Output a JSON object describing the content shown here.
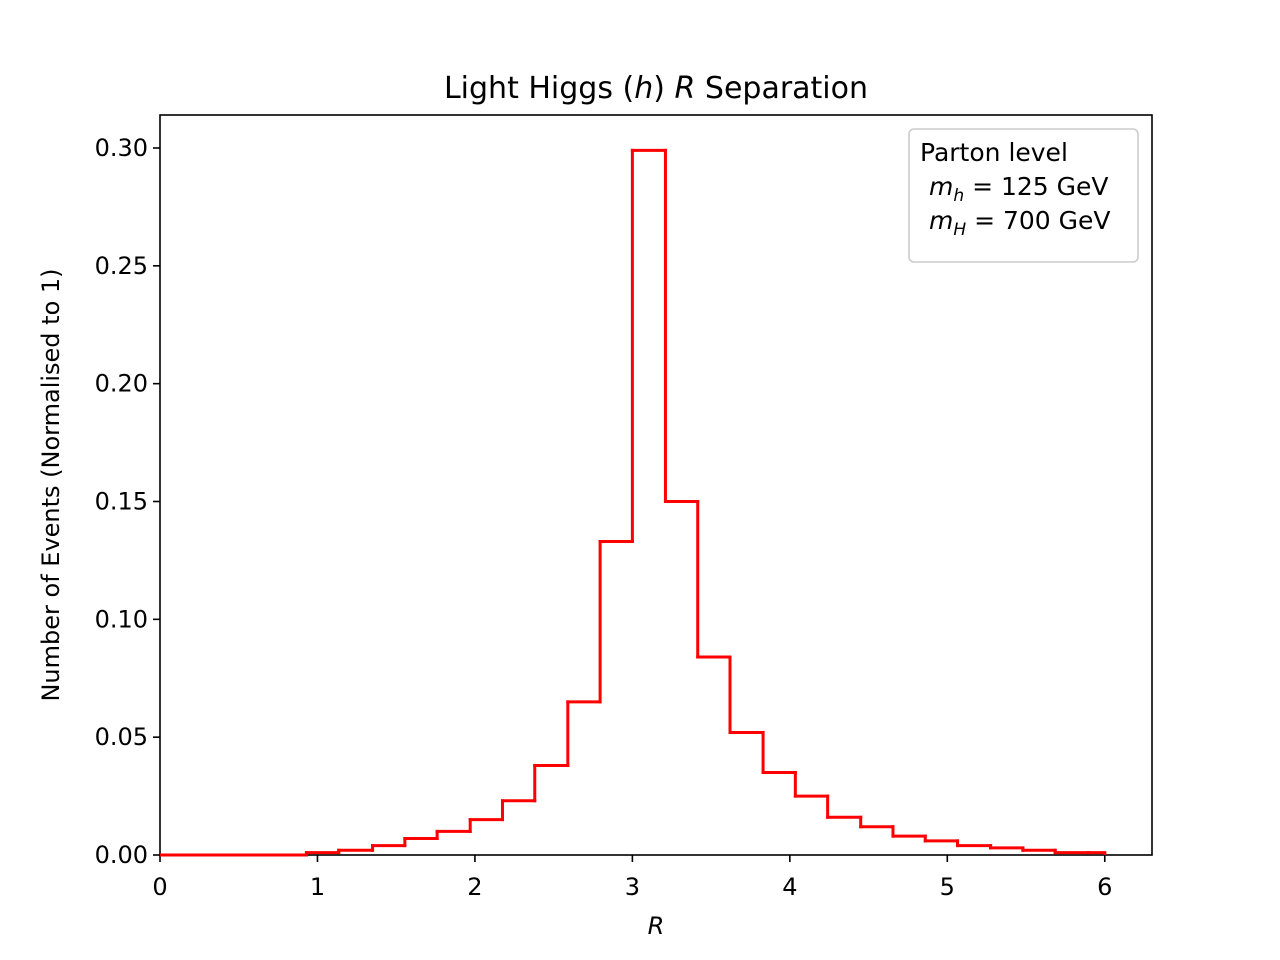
{
  "chart_data": {
    "type": "histogram-step",
    "title": {
      "pre": "Light Higgs (",
      "var": "h",
      "mid": ") ",
      "var2": "R",
      "post": " Separation"
    },
    "xlabel": "R",
    "ylabel": "Number of Events (Normalised to 1)",
    "xlim": [
      0,
      6.3
    ],
    "ylim": [
      0,
      0.314
    ],
    "xticks": [
      0,
      1,
      2,
      3,
      4,
      5,
      6
    ],
    "xtick_labels": [
      "0",
      "1",
      "2",
      "3",
      "4",
      "5",
      "6"
    ],
    "yticks": [
      0.0,
      0.05,
      0.1,
      0.15,
      0.2,
      0.25,
      0.3
    ],
    "ytick_labels": [
      "0.00",
      "0.05",
      "0.10",
      "0.15",
      "0.20",
      "0.25",
      "0.30"
    ],
    "series": [
      {
        "color": "#ff0000",
        "bin_edges": [
          0.93,
          1.135,
          1.35,
          1.555,
          1.76,
          1.97,
          2.175,
          2.38,
          2.59,
          2.795,
          3.0,
          3.21,
          3.415,
          3.62,
          3.83,
          4.035,
          4.24,
          4.45,
          4.655,
          4.86,
          5.065,
          5.275,
          5.48,
          5.685,
          5.895,
          6.0
        ],
        "values": [
          0.001,
          0.002,
          0.004,
          0.007,
          0.01,
          0.015,
          0.023,
          0.038,
          0.065,
          0.133,
          0.299,
          0.15,
          0.084,
          0.052,
          0.035,
          0.025,
          0.016,
          0.012,
          0.008,
          0.006,
          0.004,
          0.003,
          0.002,
          0.001,
          0.001
        ]
      }
    ],
    "legend": {
      "position": "top-right",
      "line1": "Parton level",
      "line2": {
        "sym": "m",
        "sub": "h",
        "rest": " = 125 GeV"
      },
      "line3": {
        "sym": "m",
        "sub": "H",
        "rest": " = 700 GeV"
      }
    },
    "grid": false
  }
}
